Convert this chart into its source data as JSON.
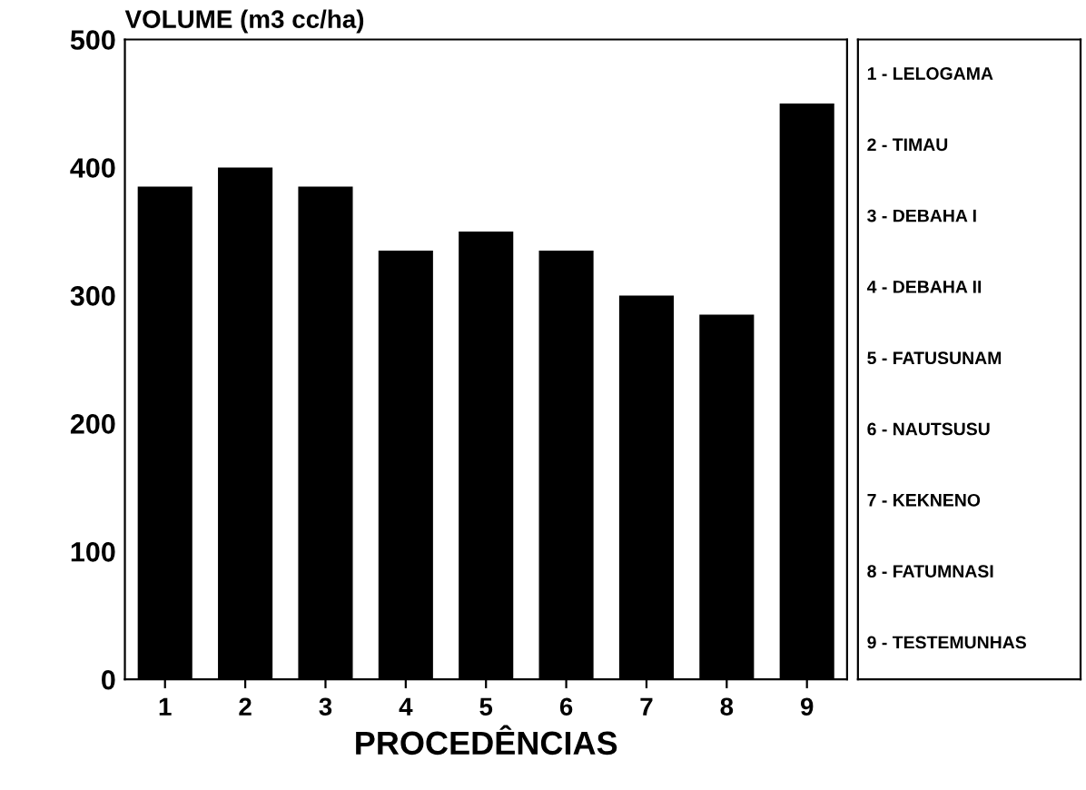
{
  "chart_data": {
    "type": "bar",
    "ylabel": "VOLUME (m3 cc/ha)",
    "xlabel": "PROCEDÊNCIAS",
    "categories": [
      "1",
      "2",
      "3",
      "4",
      "5",
      "6",
      "7",
      "8",
      "9"
    ],
    "values": [
      385,
      400,
      385,
      335,
      350,
      335,
      300,
      285,
      450
    ],
    "color": "#000000",
    "ylim": [
      0,
      500
    ],
    "yticks": [
      0,
      100,
      200,
      300,
      400,
      500
    ],
    "grid": false,
    "annotations": [
      "1 - LELOGAMA",
      "2 - TIMAU",
      "3 - DEBAHA I",
      "4 - DEBAHA II",
      "5 - FATUSUNAM",
      "6 - NAUTSUSU",
      "7 - KEKNENO",
      "8 - FATUMNASI",
      "9 - TESTEMUNHAS"
    ]
  }
}
